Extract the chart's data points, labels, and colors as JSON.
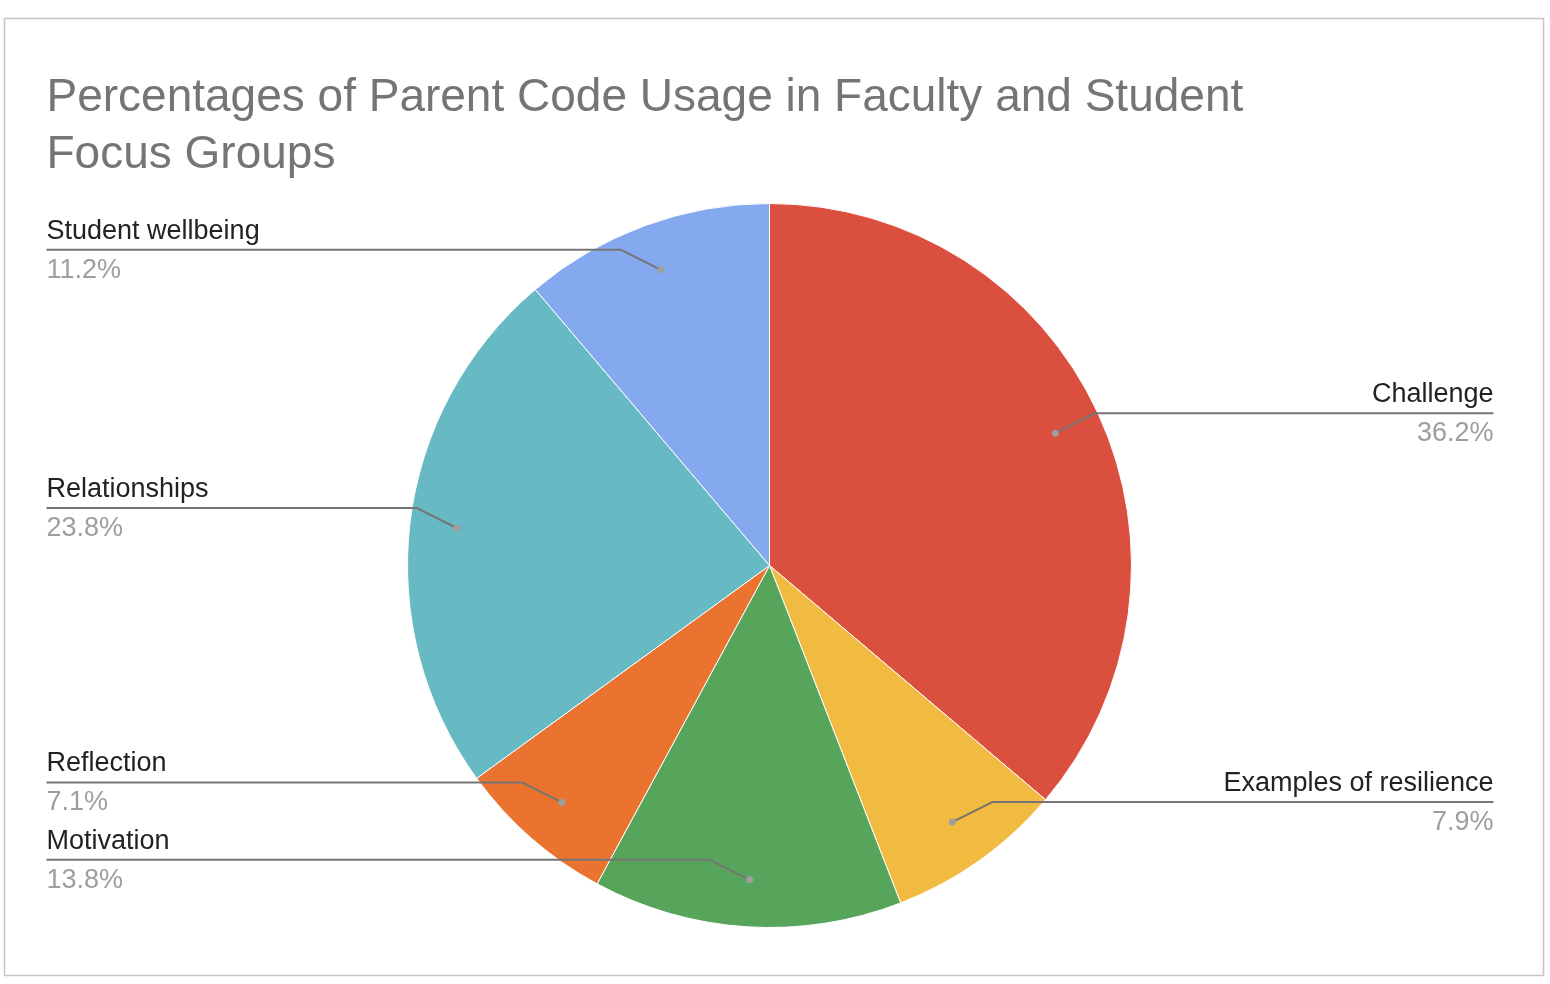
{
  "chart_data": {
    "type": "pie",
    "title": "Percentages of Parent Code Usage in Faculty and Student Focus Groups",
    "categories": [
      "Challenge",
      "Examples of resilience",
      "Motivation",
      "Reflection",
      "Relationships",
      "Student wellbeing"
    ],
    "values": [
      36.2,
      7.9,
      13.8,
      7.1,
      23.8,
      11.2
    ],
    "colors": [
      "#db4f3f",
      "#f1bb41",
      "#57a55a",
      "#eb7330",
      "#67b9c3",
      "#84a9ef"
    ],
    "value_labels": [
      "36.2%",
      "7.9%",
      "13.8%",
      "7.1%",
      "23.8%",
      "11.2%"
    ]
  }
}
